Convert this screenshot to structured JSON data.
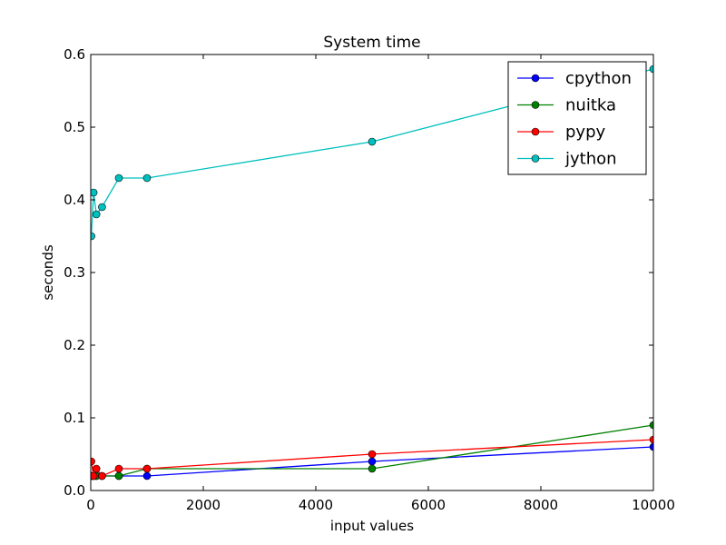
{
  "chart_data": {
    "type": "line",
    "title": "System time",
    "xlabel": "input values",
    "ylabel": "seconds",
    "xlim": [
      0,
      10000
    ],
    "ylim": [
      0,
      0.6
    ],
    "xticks": [
      0,
      2000,
      4000,
      6000,
      8000,
      10000
    ],
    "xtick_labels": [
      "0",
      "2000",
      "4000",
      "6000",
      "8000",
      "10000"
    ],
    "yticks": [
      0,
      0.1,
      0.2,
      0.3,
      0.4,
      0.5,
      0.6
    ],
    "ytick_labels": [
      "0.0",
      "0.1",
      "0.2",
      "0.3",
      "0.4",
      "0.5",
      "0.6"
    ],
    "grid": false,
    "legend_position": "top-right",
    "x": [
      10,
      50,
      100,
      200,
      500,
      1000,
      5000,
      10000
    ],
    "series": [
      {
        "name": "cpython",
        "color": "#0000ff",
        "values": [
          0.02,
          0.02,
          0.02,
          0.02,
          0.02,
          0.02,
          0.04,
          0.06
        ]
      },
      {
        "name": "nuitka",
        "color": "#008000",
        "values": [
          0.02,
          0.02,
          0.02,
          0.02,
          0.02,
          0.03,
          0.03,
          0.09
        ]
      },
      {
        "name": "pypy",
        "color": "#ff0000",
        "values": [
          0.04,
          0.02,
          0.03,
          0.02,
          0.03,
          0.03,
          0.05,
          0.07
        ]
      },
      {
        "name": "jython",
        "color": "#00bfbf",
        "values": [
          0.35,
          0.41,
          0.38,
          0.39,
          0.43,
          0.43,
          0.48,
          0.58
        ]
      }
    ]
  }
}
